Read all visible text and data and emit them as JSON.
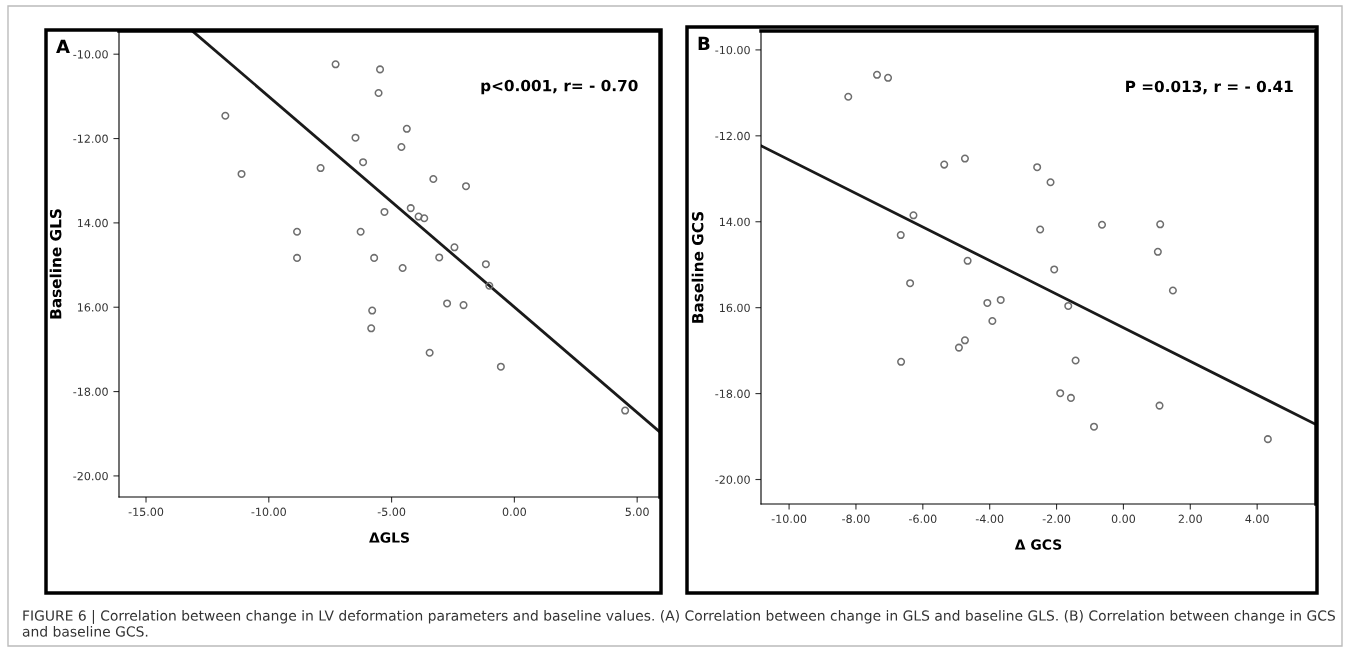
{
  "chart_data": [
    {
      "type": "scatter",
      "title": "A",
      "xlabel": "ΔGLS",
      "ylabel": "Baseline GLS",
      "grid": false,
      "legend": false,
      "xlim": [
        -16.1,
        5.93
      ],
      "ylim": [
        -20.5,
        -9.45
      ],
      "xticks": [
        {
          "value": -15,
          "label": "-15.00"
        },
        {
          "value": -10,
          "label": "-10.00"
        },
        {
          "value": -5,
          "label": "-5.00"
        },
        {
          "value": 0,
          "label": "0.00"
        },
        {
          "value": 5,
          "label": "5.00"
        }
      ],
      "yticks": [
        {
          "value": -10,
          "label": "-10.00"
        },
        {
          "value": -12,
          "label": "-12.00"
        },
        {
          "value": -14,
          "label": "14.00"
        },
        {
          "value": -16,
          "label": "16.00"
        },
        {
          "value": -18,
          "label": "-18.00"
        },
        {
          "value": -20,
          "label": "-20.00"
        }
      ],
      "annotations": [
        "p<0.001, r= - 0.70"
      ],
      "series": [
        {
          "marker": "circle",
          "color": "#6e6e6e",
          "x": [
            -11.77,
            -11.11,
            -7.89,
            -8.85,
            -8.85,
            -7.28,
            -5.47,
            -5.53,
            -4.38,
            -6.47,
            -4.6,
            -6.16,
            -3.3,
            -1.97,
            -5.29,
            -4.22,
            -3.9,
            -3.67,
            -6.26,
            -2.44,
            -5.71,
            -3.06,
            -4.55,
            -1.16,
            -1.02,
            -2.74,
            -2.07,
            -5.79,
            -5.83,
            -3.45,
            -0.55,
            4.51
          ],
          "values": [
            -11.46,
            -12.84,
            -12.7,
            -14.21,
            -14.83,
            -10.24,
            -10.36,
            -10.92,
            -11.77,
            -11.98,
            -12.2,
            -12.56,
            -12.96,
            -13.13,
            -13.74,
            -13.65,
            -13.85,
            -13.89,
            -14.21,
            -14.58,
            -14.83,
            -14.82,
            -15.07,
            -14.98,
            -15.49,
            -15.91,
            -15.95,
            -16.08,
            -16.5,
            -17.08,
            -17.41,
            -18.45
          ]
        },
        {
          "type": "line",
          "color": "#1a1a1a",
          "x": [
            -13.11,
            5.93
          ],
          "values": [
            -9.45,
            -18.96
          ]
        }
      ]
    },
    {
      "type": "scatter",
      "title": "B",
      "xlabel": "Δ GCS",
      "ylabel": "Baseline GCS",
      "grid": false,
      "legend": false,
      "xlim": [
        -10.84,
        5.76
      ],
      "ylim": [
        -20.57,
        -9.56
      ],
      "xticks": [
        {
          "value": -10,
          "label": "-10.00"
        },
        {
          "value": -8,
          "label": "-8.00"
        },
        {
          "value": -6,
          "label": "-6.00"
        },
        {
          "value": -4,
          "label": "-4.00"
        },
        {
          "value": -2,
          "label": "-2.00"
        },
        {
          "value": 0,
          "label": "0.00"
        },
        {
          "value": 2,
          "label": "2.00"
        },
        {
          "value": 4,
          "label": "4.00"
        }
      ],
      "yticks": [
        {
          "value": -10,
          "label": "-10.00"
        },
        {
          "value": -12,
          "label": "-12.00"
        },
        {
          "value": -14,
          "label": "14.00"
        },
        {
          "value": -16,
          "label": "16.00"
        },
        {
          "value": -18,
          "label": "-18.00"
        },
        {
          "value": -20,
          "label": "-20.00"
        }
      ],
      "annotations": [
        "P =0.013, r = - 0.41",
        "FIGURE 6 | Correlation between change in LV deformation parameters and baseline values. (A) Correlation between change in GLS and baseline GLS. (B) Correlation between change in GCS and baseline GCS."
      ],
      "series": [
        {
          "marker": "circle",
          "color": "#6e6e6e",
          "x": [
            -8.23,
            -7.37,
            -7.04,
            -5.36,
            -4.74,
            -6.28,
            -6.66,
            -4.66,
            -6.38,
            -4.07,
            -3.67,
            -3.92,
            -4.74,
            -4.92,
            -6.65,
            -2.58,
            -2.18,
            -2.49,
            -0.64,
            1.1,
            1.03,
            -2.07,
            1.48,
            -1.65,
            -1.43,
            -1.89,
            -1.57,
            1.08,
            -0.88,
            4.32
          ],
          "values": [
            -11.09,
            -10.58,
            -10.65,
            -12.67,
            -12.53,
            -13.85,
            -14.31,
            -14.91,
            -15.43,
            -15.89,
            -15.82,
            -16.31,
            -16.76,
            -16.93,
            -17.26,
            -12.73,
            -13.08,
            -14.18,
            -14.07,
            -14.06,
            -14.7,
            -15.11,
            -15.6,
            -15.96,
            -17.23,
            -17.99,
            -18.1,
            -18.28,
            -18.77,
            -19.06
          ]
        },
        {
          "type": "line",
          "color": "#1a1a1a",
          "x": [
            -10.84,
            5.76
          ],
          "values": [
            -12.23,
            -18.72
          ]
        }
      ]
    }
  ]
}
